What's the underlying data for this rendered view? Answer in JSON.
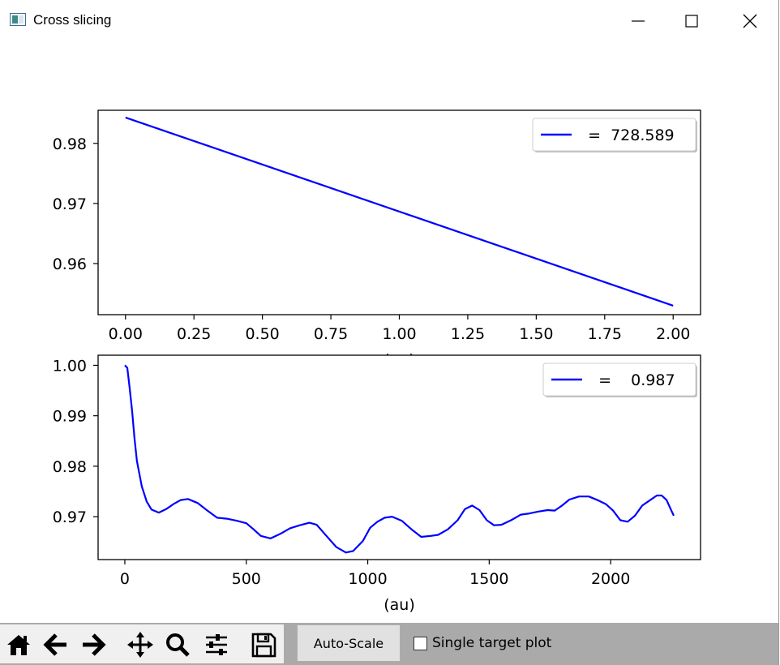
{
  "window": {
    "title": "Cross slicing",
    "controls": [
      "minimize",
      "maximize",
      "close"
    ]
  },
  "toolbar": {
    "tools": [
      "home-icon",
      "back-icon",
      "forward-icon",
      "pan-icon",
      "zoom-icon",
      "configure-subplots-icon",
      "save-icon"
    ],
    "autoscale_label": "Auto-Scale",
    "single_target_label": "Single target plot",
    "single_target_checked": false
  },
  "chart_data": [
    {
      "type": "line",
      "legend": {
        "entries": [
          "  =  728.589"
        ],
        "placement": "upper-right"
      },
      "xlabel": "(au)",
      "xlim": [
        -0.1,
        2.1
      ],
      "ylim": [
        0.9515,
        0.9855
      ],
      "xticks": [
        "0.00",
        "0.25",
        "0.50",
        "0.75",
        "1.00",
        "1.25",
        "1.50",
        "1.75",
        "2.00"
      ],
      "yticks": [
        "0.96",
        "0.97",
        "0.98"
      ],
      "series": [
        {
          "color": "#0000ff",
          "x": [
            0,
            2
          ],
          "y": [
            0.9843,
            0.953
          ]
        }
      ]
    },
    {
      "type": "line",
      "legend": {
        "entries": [
          "  =    0.987"
        ],
        "placement": "upper-right"
      },
      "xlabel": "(au)",
      "xlim": [
        -110,
        2370
      ],
      "ylim": [
        0.9615,
        1.002
      ],
      "xticks": [
        "0",
        "500",
        "1000",
        "1500",
        "2000"
      ],
      "yticks": [
        "0.97",
        "0.98",
        "0.99",
        "1.00"
      ],
      "series": [
        {
          "color": "#0000ff",
          "x": [
            0,
            10,
            20,
            30,
            40,
            50,
            70,
            90,
            110,
            140,
            170,
            200,
            230,
            260,
            300,
            340,
            380,
            420,
            460,
            500,
            530,
            560,
            600,
            640,
            680,
            720,
            760,
            790,
            830,
            870,
            910,
            940,
            980,
            1010,
            1040,
            1070,
            1100,
            1140,
            1180,
            1220,
            1260,
            1290,
            1330,
            1370,
            1400,
            1430,
            1460,
            1490,
            1520,
            1550,
            1590,
            1630,
            1660,
            1700,
            1740,
            1770,
            1800,
            1830,
            1870,
            1910,
            1950,
            1980,
            2010,
            2040,
            2070,
            2100,
            2130,
            2160,
            2190,
            2210,
            2230,
            2250,
            2260
          ],
          "y": [
            1.0,
            0.9995,
            0.9955,
            0.991,
            0.9855,
            0.981,
            0.976,
            0.973,
            0.9714,
            0.9708,
            0.9715,
            0.9725,
            0.9733,
            0.9735,
            0.9727,
            0.9712,
            0.9698,
            0.9696,
            0.9692,
            0.9687,
            0.9675,
            0.9662,
            0.9657,
            0.9666,
            0.9677,
            0.9683,
            0.9688,
            0.9684,
            0.9662,
            0.964,
            0.9629,
            0.9632,
            0.9652,
            0.9678,
            0.969,
            0.9698,
            0.97,
            0.9692,
            0.9675,
            0.966,
            0.9662,
            0.9664,
            0.9675,
            0.9693,
            0.9715,
            0.9722,
            0.9713,
            0.9693,
            0.9683,
            0.9684,
            0.9693,
            0.9704,
            0.9706,
            0.971,
            0.9713,
            0.9712,
            0.9722,
            0.9734,
            0.974,
            0.974,
            0.9732,
            0.9725,
            0.9712,
            0.9693,
            0.969,
            0.9702,
            0.9722,
            0.9732,
            0.9742,
            0.9742,
            0.9733,
            0.9712,
            0.9702
          ]
        }
      ]
    }
  ]
}
